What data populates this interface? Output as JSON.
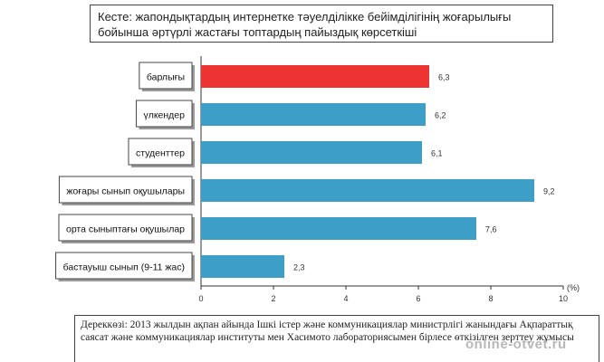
{
  "title": "Кесте: жапондықтардың интернетке тәуелділікке бейімділігінің жоғарылығы бойынша әртүрлі жастағы топтардың пайыздық көрсеткіші",
  "source": "Дереккөзі: 2013 жылдын ақпан айында Ішкі істер және коммуникациялар министрлігі жанындағы Ақпараттық саясат және коммуникациялар институты мен Хасимото лабораториясымен бірлесе өткізілген зерттеу жұмысы",
  "watermark": "online-otvet.ru",
  "colors": {
    "highlight": "#ee3333",
    "bar": "#3d9fc7",
    "axis": "#333333"
  },
  "chart_data": {
    "type": "bar",
    "orientation": "horizontal",
    "categories": [
      "барлығы",
      "үлкендер",
      "студенттер",
      "жоғары сынып оқушылары",
      "орта сыныптағы оқушылар",
      "бастауыш сынып (9-11 жас)"
    ],
    "values": [
      6.3,
      6.2,
      6.1,
      9.2,
      7.6,
      2.3
    ],
    "value_labels": [
      "6,3",
      "6,2",
      "6,1",
      "9,2",
      "7,6",
      "2,3"
    ],
    "highlight_index": 0,
    "xlim": [
      0,
      10
    ],
    "xticks": [
      0,
      2,
      4,
      6,
      8,
      10
    ],
    "unit_label": "(%)",
    "grid": false
  }
}
